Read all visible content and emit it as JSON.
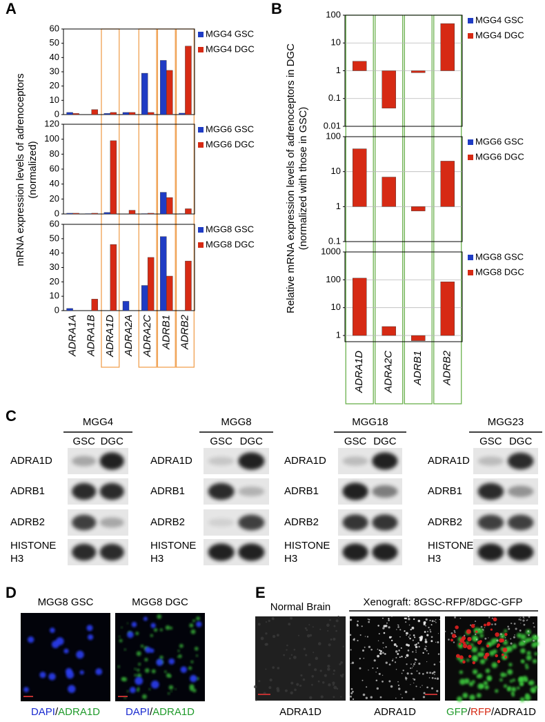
{
  "chart_data": [
    {
      "type": "bar",
      "label": "A",
      "ylabel": [
        "mRNA expression levels of adrenoceptors",
        "(normalized)"
      ],
      "categories": [
        "ADRA1A",
        "ADRA1B",
        "ADRA1D",
        "ADRA2A",
        "ADRA2C",
        "ADRB1",
        "ADRB2"
      ],
      "facets": [
        {
          "ylim": [
            0,
            60
          ],
          "yticks": [
            0,
            10,
            20,
            30,
            40,
            50,
            60
          ],
          "series": [
            {
              "name": "MGG4 GSC",
              "color": "#1f3cc4",
              "values": [
                1.5,
                0,
                0.8,
                1.5,
                29,
                38,
                1
              ]
            },
            {
              "name": "MGG4 DGC",
              "color": "#d62a14",
              "values": [
                0.8,
                3.5,
                1.5,
                1.5,
                1.5,
                31,
                48
              ]
            }
          ]
        },
        {
          "ylim": [
            0,
            120
          ],
          "yticks": [
            0,
            20,
            40,
            60,
            80,
            100,
            120
          ],
          "series": [
            {
              "name": "MGG6 GSC",
              "color": "#1f3cc4",
              "values": [
                1,
                0.5,
                2,
                0,
                0.5,
                29,
                0.5
              ]
            },
            {
              "name": "MGG6 DGC",
              "color": "#d62a14",
              "values": [
                1,
                1,
                98,
                5,
                1,
                22,
                7
              ]
            }
          ]
        },
        {
          "ylim": [
            0,
            60
          ],
          "yticks": [
            0,
            10,
            20,
            30,
            40,
            50,
            60
          ],
          "series": [
            {
              "name": "MGG8 GSC",
              "color": "#1f3cc4",
              "values": [
                1.5,
                0,
                0,
                6.5,
                17.5,
                51.5,
                0
              ]
            },
            {
              "name": "MGG8 DGC",
              "color": "#d62a14",
              "values": [
                0,
                8,
                46,
                0,
                37,
                24,
                34.5
              ]
            }
          ]
        }
      ]
    },
    {
      "type": "bar",
      "label": "B",
      "log_scale": true,
      "grid": true,
      "ylabel": [
        "Relative mRNA expression levels of adrenoceptors in DGC",
        "(normalized with those in GSC)"
      ],
      "categories": [
        "ADRA1D",
        "ADRA2C",
        "ADRB1",
        "ADRB2"
      ],
      "facets": [
        {
          "ylim": [
            0.01,
            100
          ],
          "yticks": [
            0.01,
            0.1,
            1,
            10,
            100
          ],
          "series": [
            {
              "name": "MGG4 GSC",
              "color": "#1f3cc4",
              "values": [
                1,
                1,
                1,
                1
              ]
            },
            {
              "name": "MGG4 DGC",
              "color": "#d62a14",
              "values": [
                2.2,
                0.045,
                0.85,
                50
              ]
            }
          ]
        },
        {
          "ylim": [
            0.1,
            100
          ],
          "yticks": [
            0.1,
            1,
            10,
            100
          ],
          "series": [
            {
              "name": "MGG6 GSC",
              "color": "#1f3cc4",
              "values": [
                1,
                1,
                1,
                1
              ]
            },
            {
              "name": "MGG6 DGC",
              "color": "#d62a14",
              "values": [
                45,
                7,
                0.75,
                20
              ]
            }
          ]
        },
        {
          "ylim": [
            0.6,
            1000
          ],
          "yticks": [
            1,
            10,
            100,
            1000
          ],
          "series": [
            {
              "name": "MGG8 GSC",
              "color": "#1f3cc4",
              "values": [
                1,
                1,
                1,
                1
              ]
            },
            {
              "name": "MGG8 DGC",
              "color": "#d62a14",
              "values": [
                115,
                2.1,
                0.65,
                85
              ]
            }
          ]
        }
      ]
    }
  ],
  "western_blot": {
    "label": "C",
    "groups": [
      {
        "cell_line": "MGG4",
        "lanes": [
          "GSC",
          "DGC"
        ],
        "rows": [
          "ADRA1D",
          "ADRB1",
          "ADRB2",
          [
            "HISTONE",
            "H3"
          ]
        ]
      },
      {
        "cell_line": "MGG8",
        "lanes": [
          "GSC",
          "DGC"
        ],
        "rows": [
          "ADRA1D",
          "ADRB1",
          "ADRB2",
          [
            "HISTONE",
            "H3"
          ]
        ]
      },
      {
        "cell_line": "MGG18",
        "lanes": [
          "GSC",
          "DGC"
        ],
        "rows": [
          "ADRA1D",
          "ADRB1",
          "ADRB2",
          [
            "HISTONE",
            "H3"
          ]
        ]
      },
      {
        "cell_line": "MGG23",
        "lanes": [
          "GSC",
          "DGC"
        ],
        "rows": [
          "ADRA1D",
          "ADRB1",
          "ADRB2",
          [
            "HISTONE",
            "H3"
          ]
        ]
      }
    ]
  },
  "immunofluorescence": {
    "label": "D",
    "images": [
      {
        "title": "MGG8 GSC",
        "caption": [
          {
            "text": "DAPI",
            "color": "#1a2bd0"
          },
          {
            "text": "/",
            "color": "#000000"
          },
          {
            "text": "ADRA1D",
            "color": "#1f9a2a"
          }
        ]
      },
      {
        "title": "MGG8 DGC",
        "caption": [
          {
            "text": "DAPI",
            "color": "#1a2bd0"
          },
          {
            "text": "/",
            "color": "#000000"
          },
          {
            "text": "ADRA1D",
            "color": "#1f9a2a"
          }
        ]
      }
    ]
  },
  "xenograft": {
    "label": "E",
    "header": "Xenograft: 8GSC-RFP/8DGC-GFP",
    "images": [
      {
        "title": "Normal Brain",
        "caption": [
          {
            "text": "ADRA1D",
            "color": "#000000"
          }
        ]
      },
      {
        "caption": [
          {
            "text": "ADRA1D",
            "color": "#000000"
          }
        ]
      },
      {
        "caption": [
          {
            "text": "GFP",
            "color": "#1f9a2a"
          },
          {
            "text": "/",
            "color": "#000000"
          },
          {
            "text": "RFP",
            "color": "#d62a14"
          },
          {
            "text": "/",
            "color": "#000000"
          },
          {
            "text": "ADRA1D",
            "color": "#000000"
          }
        ]
      }
    ]
  }
}
